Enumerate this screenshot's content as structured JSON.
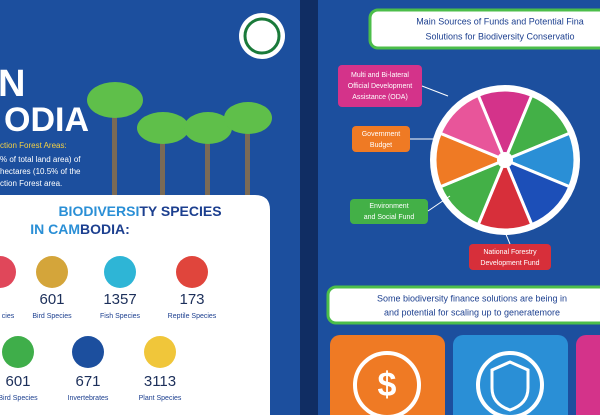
{
  "left": {
    "heading_top": "N",
    "heading_bottom": "ODIA",
    "forest_label": "ction Forest Areas:",
    "forest_lines": [
      "% of total land area) of",
      "hectares (10.5% of the",
      "ction Forest area."
    ],
    "card_title_parts": [
      "BIODIVERSI",
      "TY SPECIES"
    ],
    "card_subtitle_parts": [
      "IN CAM",
      "BODIA:"
    ],
    "species": [
      {
        "number": null,
        "label": "cies"
      },
      {
        "number": 601,
        "label": "Bird Species"
      },
      {
        "number": 1357,
        "label": "Fish Species"
      },
      {
        "number": 173,
        "label": "Reptile Species"
      },
      {
        "number": 601,
        "label": "Bird Species"
      },
      {
        "number": 671,
        "label": "Invertebrates"
      },
      {
        "number": 3113,
        "label": "Plant Species"
      }
    ]
  },
  "right": {
    "header_lines": [
      "Main Sources of Funds and Potential Fina",
      "Solutions for Biodiversity Conservatio"
    ],
    "sources": {
      "oda": [
        "Multi and Bi-lateral",
        "Official Development",
        "Assistance (ODA)"
      ],
      "budget": [
        "Government",
        "Budget"
      ],
      "env": [
        "Environment",
        "and Social Fund"
      ],
      "nfdf": [
        "National Forestry",
        "Development Fund"
      ]
    },
    "solutions_lines": [
      "Some biodiversity finance solutions are being in",
      "and potential for scaling up to generatemore"
    ]
  }
}
